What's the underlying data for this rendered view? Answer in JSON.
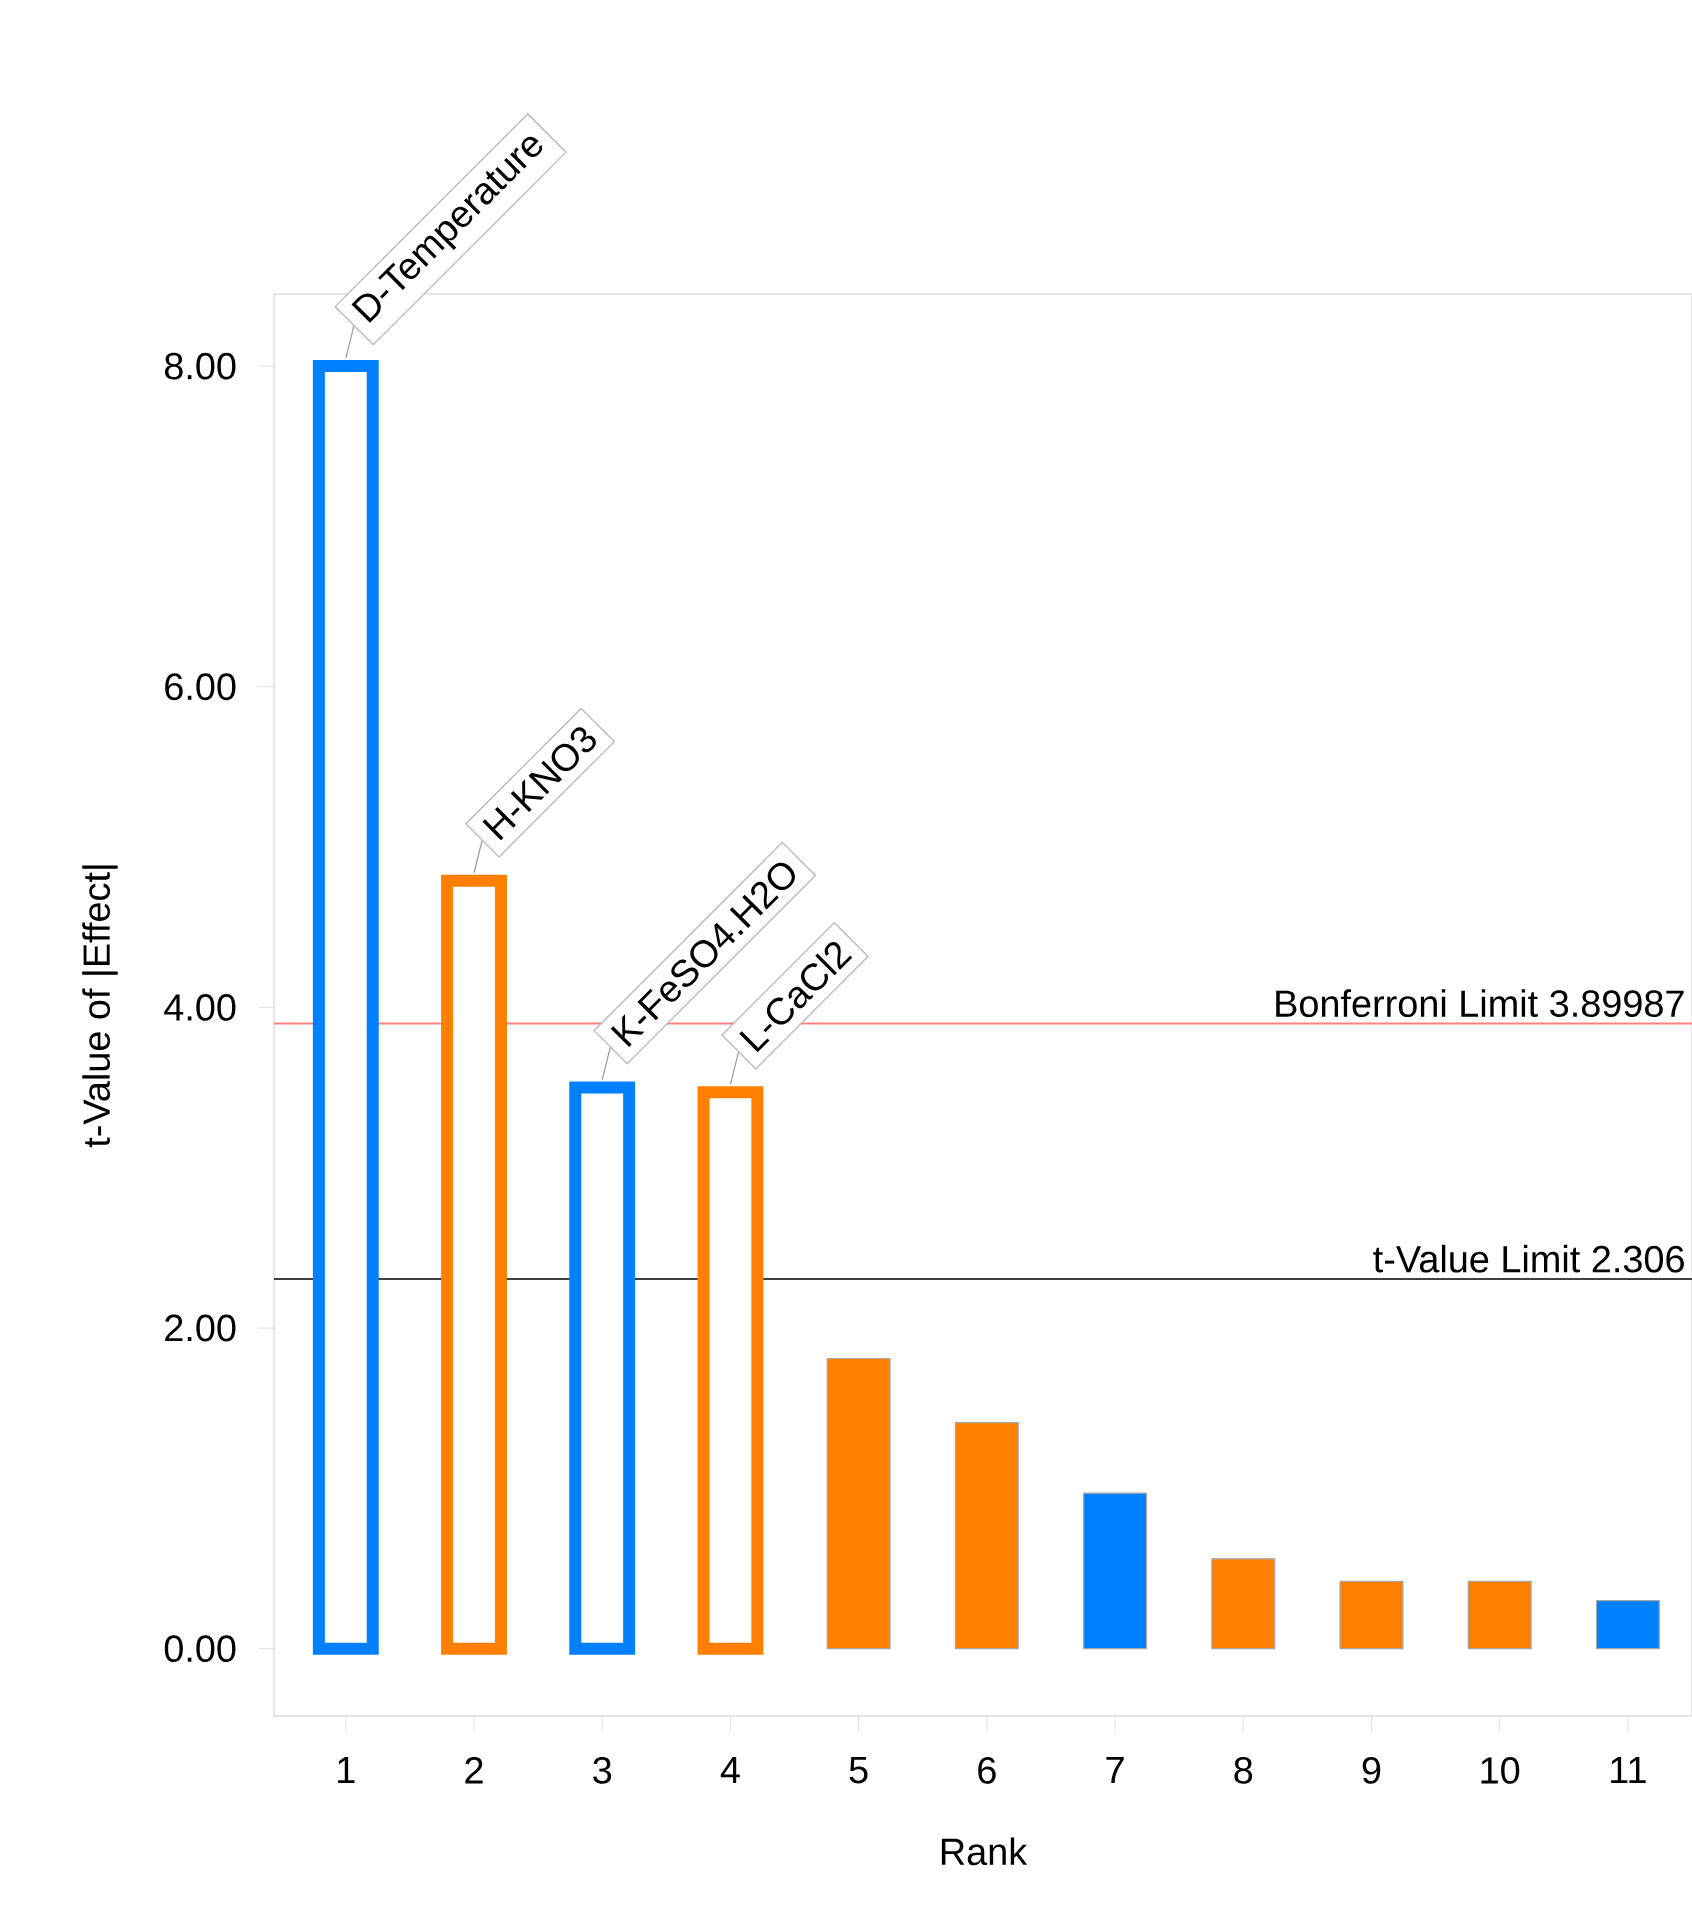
{
  "chart_data": {
    "type": "bar",
    "xlabel": "Rank",
    "ylabel": "t-Value of |Effect|",
    "categories": [
      "1",
      "2",
      "3",
      "4",
      "5",
      "6",
      "7",
      "8",
      "9",
      "10",
      "11"
    ],
    "values": [
      8.0,
      4.79,
      3.5,
      3.47,
      1.81,
      1.41,
      0.97,
      0.56,
      0.42,
      0.42,
      0.3
    ],
    "colors": [
      "#0080ff",
      "#ff8000",
      "#0080ff",
      "#ff8000",
      "#ff8000",
      "#ff8000",
      "#0080ff",
      "#ff8000",
      "#ff8000",
      "#ff8000",
      "#0080ff"
    ],
    "ylim": [
      -0.42,
      8.45
    ],
    "yticks": [
      {
        "value": 0,
        "label": "0.00"
      },
      {
        "value": 2,
        "label": "2.00"
      },
      {
        "value": 4,
        "label": "4.00"
      },
      {
        "value": 6,
        "label": "6.00"
      },
      {
        "value": 8,
        "label": "8.00"
      }
    ],
    "ref_lines": [
      {
        "axis": "y",
        "value": 3.89987,
        "label": "Bonferroni Limit 3.89987",
        "color": "#ff8080"
      },
      {
        "axis": "y",
        "value": 2.306,
        "label": "t-Value Limit 2.306",
        "color": "#404040"
      }
    ],
    "annotations": [
      {
        "text": "D-Temperature",
        "x": "1",
        "y": 8.0
      },
      {
        "text": "H-KNO3",
        "x": "2",
        "y": 4.79
      },
      {
        "text": "K-FeSO4.H2O",
        "x": "3",
        "y": 3.5
      },
      {
        "text": "L-CaCl2",
        "x": "4",
        "y": 3.47
      }
    ]
  }
}
